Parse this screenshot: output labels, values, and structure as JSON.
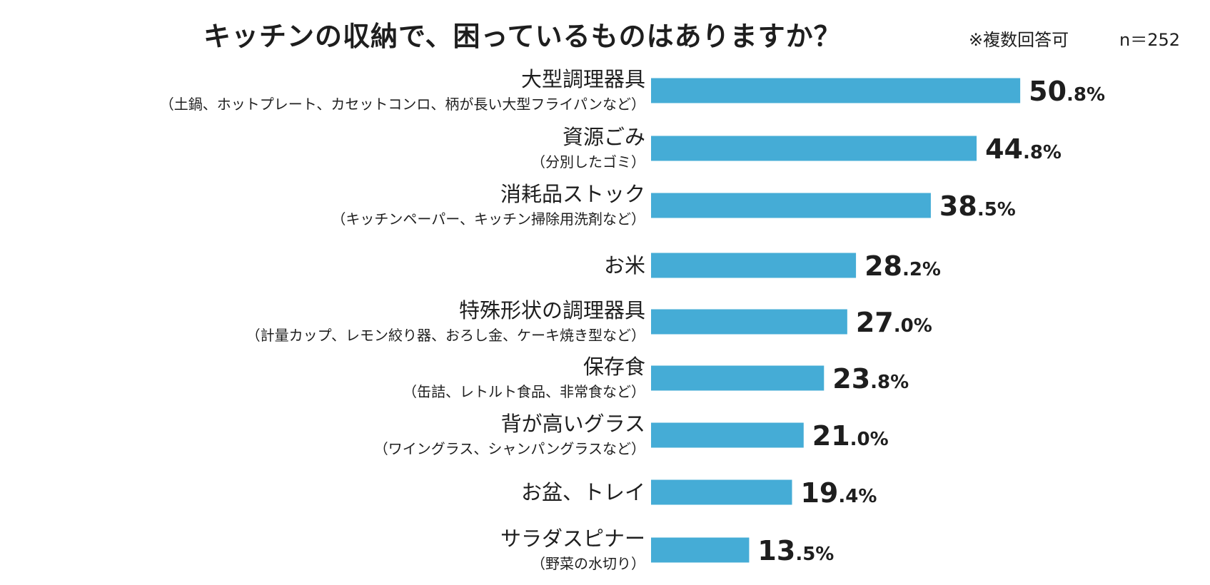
{
  "header": {
    "title": "キッチンの収納で、困っているものはありますか？",
    "note": "※複数回答可",
    "sample": "n＝252"
  },
  "colors": {
    "bar": "#45acd6",
    "text": "#1e1e1e"
  },
  "chart_data": {
    "type": "bar",
    "orientation": "horizontal",
    "title": "キッチンの収納で、困っているものはありますか？",
    "unit": "%",
    "categories": [
      "大型調理器具",
      "資源ごみ",
      "消耗品ストック",
      "お米",
      "特殊形状の調理器具",
      "保存食",
      "背が高いグラス",
      "お盆、トレイ",
      "サラダスピナー"
    ],
    "sublabels": [
      "（土鍋、ホットプレート、カセットコンロ、柄が長い大型フライパンなど）",
      "（分別したゴミ）",
      "（キッチンペーパー、キッチン掃除用洗剤など）",
      "",
      "（計量カップ、レモン絞り器、おろし金、ケーキ焼き型など）",
      "（缶詰、レトルト食品、非常食など）",
      "（ワイングラス、シャンパングラスなど）",
      "",
      "（野菜の水切り）"
    ],
    "values": [
      50.8,
      44.8,
      38.5,
      28.2,
      27.0,
      23.8,
      21.0,
      19.4,
      13.5
    ],
    "value_labels": [
      "50.8%",
      "44.8%",
      "38.5%",
      "28.2%",
      "27.0%",
      "23.8%",
      "21.0%",
      "19.4%",
      "13.5%"
    ],
    "grid": false,
    "legend": "none"
  }
}
